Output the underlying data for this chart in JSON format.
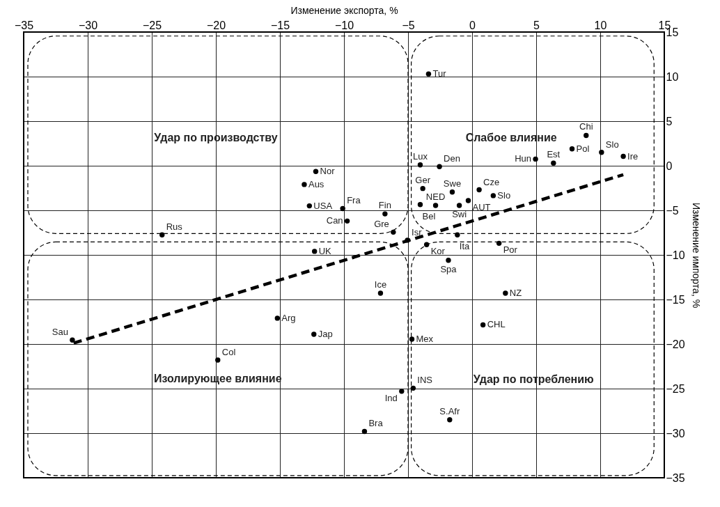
{
  "chart_data": {
    "type": "scatter",
    "xlabel": "Изменение экспорта, %",
    "ylabel": "Изменение импорта, %",
    "xlim": [
      -35,
      15
    ],
    "xticks": [
      -35,
      -30,
      -25,
      -20,
      -15,
      -10,
      -5,
      0,
      5,
      10,
      15
    ],
    "ylim": [
      -35,
      15
    ],
    "yticks": [
      -35,
      -30,
      -25,
      -20,
      -15,
      -10,
      -5,
      0,
      5,
      10,
      15
    ],
    "grid": true,
    "marker": "circle",
    "annotations": [
      "Удар по производству",
      "Слабое влияние",
      "Изолирующее влияние",
      "Удар по потреблению"
    ],
    "series": [
      {
        "name": "Nor",
        "color": "#000000",
        "x": [
          -12.2
        ],
        "values": [
          -0.65
        ]
      },
      {
        "name": "Aus",
        "color": "#000000",
        "x": [
          -13.1
        ],
        "values": [
          -2.1
        ]
      },
      {
        "name": "USA",
        "color": "#000000",
        "x": [
          -12.7
        ],
        "values": [
          -4.5
        ]
      },
      {
        "name": "Fra",
        "color": "#000000",
        "x": [
          -10.1
        ],
        "values": [
          -4.8
        ]
      },
      {
        "name": "Can",
        "color": "#000000",
        "x": [
          -9.75
        ],
        "values": [
          -6.2
        ]
      },
      {
        "name": "Rus",
        "color": "#000000",
        "x": [
          -24.2
        ],
        "values": [
          -7.75
        ]
      },
      {
        "name": "Tur",
        "color": "#000000",
        "x": [
          -3.4
        ],
        "values": [
          10.3
        ]
      },
      {
        "name": "Chi",
        "color": "#000000",
        "x": [
          8.9
        ],
        "values": [
          3.4
        ]
      },
      {
        "name": "Pol",
        "color": "#000000",
        "x": [
          7.8
        ],
        "values": [
          1.9
        ]
      },
      {
        "name": "Slo",
        "color": "#000000",
        "x": [
          10.1
        ],
        "values": [
          1.5
        ]
      },
      {
        "name": "Ire",
        "color": "#000000",
        "x": [
          11.8
        ],
        "values": [
          1.05
        ]
      },
      {
        "name": "Hun",
        "color": "#000000",
        "x": [
          4.95
        ],
        "values": [
          0.75
        ]
      },
      {
        "name": "Est",
        "color": "#000000",
        "x": [
          6.35
        ],
        "values": [
          0.3
        ]
      },
      {
        "name": "Lux",
        "color": "#000000",
        "x": [
          -4.05
        ],
        "values": [
          0.1
        ]
      },
      {
        "name": "Den",
        "color": "#000000",
        "x": [
          -2.55
        ],
        "values": [
          -0.1
        ]
      },
      {
        "name": "Ger",
        "color": "#000000",
        "x": [
          -3.85
        ],
        "values": [
          -2.55
        ]
      },
      {
        "name": "Swe",
        "color": "#000000",
        "x": [
          -1.55
        ],
        "values": [
          -2.95
        ]
      },
      {
        "name": "Cze",
        "color": "#000000",
        "x": [
          0.55
        ],
        "values": [
          -2.7
        ]
      },
      {
        "name": "Slo",
        "color": "#000000",
        "x": [
          1.65
        ],
        "values": [
          -3.35
        ]
      },
      {
        "name": "AUT",
        "color": "#000000",
        "x": [
          -0.3
        ],
        "values": [
          -3.9
        ]
      },
      {
        "name": "Bel",
        "color": "#000000",
        "x": [
          -4.05
        ],
        "values": [
          -4.35
        ]
      },
      {
        "name": "NED",
        "color": "#000000",
        "x": [
          -2.85
        ],
        "values": [
          -4.45
        ]
      },
      {
        "name": "Swi",
        "color": "#000000",
        "x": [
          -1.0
        ],
        "values": [
          -4.45
        ]
      },
      {
        "name": "Fin",
        "color": "#000000",
        "x": [
          -6.8
        ],
        "values": [
          -5.4
        ]
      },
      {
        "name": "Gre",
        "color": "#000000",
        "x": [
          -6.15
        ],
        "values": [
          -7.45
        ]
      },
      {
        "name": "Isr",
        "color": "#000000",
        "x": [
          -5.05
        ],
        "values": [
          -8.35
        ]
      },
      {
        "name": "Ita",
        "color": "#000000",
        "x": [
          -1.15
        ],
        "values": [
          -7.75
        ]
      },
      {
        "name": "Kor",
        "color": "#000000",
        "x": [
          -3.55
        ],
        "values": [
          -8.85
        ]
      },
      {
        "name": "Por",
        "color": "#000000",
        "x": [
          2.1
        ],
        "values": [
          -8.7
        ]
      },
      {
        "name": "Spa",
        "color": "#000000",
        "x": [
          -1.85
        ],
        "values": [
          -10.6
        ]
      },
      {
        "name": "Ice",
        "color": "#000000",
        "x": [
          -7.15
        ],
        "values": [
          -14.3
        ]
      },
      {
        "name": "NZ",
        "color": "#000000",
        "x": [
          2.6
        ],
        "values": [
          -14.3
        ]
      },
      {
        "name": "CHL",
        "color": "#000000",
        "x": [
          0.85
        ],
        "values": [
          -17.85
        ]
      },
      {
        "name": "Mex",
        "color": "#000000",
        "x": [
          -4.7
        ],
        "values": [
          -19.45
        ]
      },
      {
        "name": "INS",
        "color": "#000000",
        "x": [
          -4.6
        ],
        "values": [
          -24.95
        ]
      },
      {
        "name": "Ind",
        "color": "#000000",
        "x": [
          -5.5
        ],
        "values": [
          -25.3
        ]
      },
      {
        "name": "S.Afr",
        "color": "#000000",
        "x": [
          -1.75
        ],
        "values": [
          -28.5
        ]
      },
      {
        "name": "Bra",
        "color": "#000000",
        "x": [
          -8.4
        ],
        "values": [
          -29.8
        ]
      },
      {
        "name": "UK",
        "color": "#000000",
        "x": [
          -12.3
        ],
        "values": [
          -9.6
        ]
      },
      {
        "name": "Arg",
        "color": "#000000",
        "x": [
          -15.2
        ],
        "values": [
          -17.1
        ]
      },
      {
        "name": "Jap",
        "color": "#000000",
        "x": [
          -12.35
        ],
        "values": [
          -18.9
        ]
      },
      {
        "name": "Sau",
        "color": "#000000",
        "x": [
          -31.2
        ],
        "values": [
          -19.55
        ]
      },
      {
        "name": "Col",
        "color": "#000000",
        "x": [
          -19.85
        ],
        "values": [
          -21.8
        ]
      },
      {
        "type": "line",
        "line_style": "dashed",
        "marker": "none",
        "color": "#000000",
        "x": [
          -31.1,
          11.8
        ],
        "values": [
          -19.9,
          -1.0
        ]
      }
    ]
  }
}
